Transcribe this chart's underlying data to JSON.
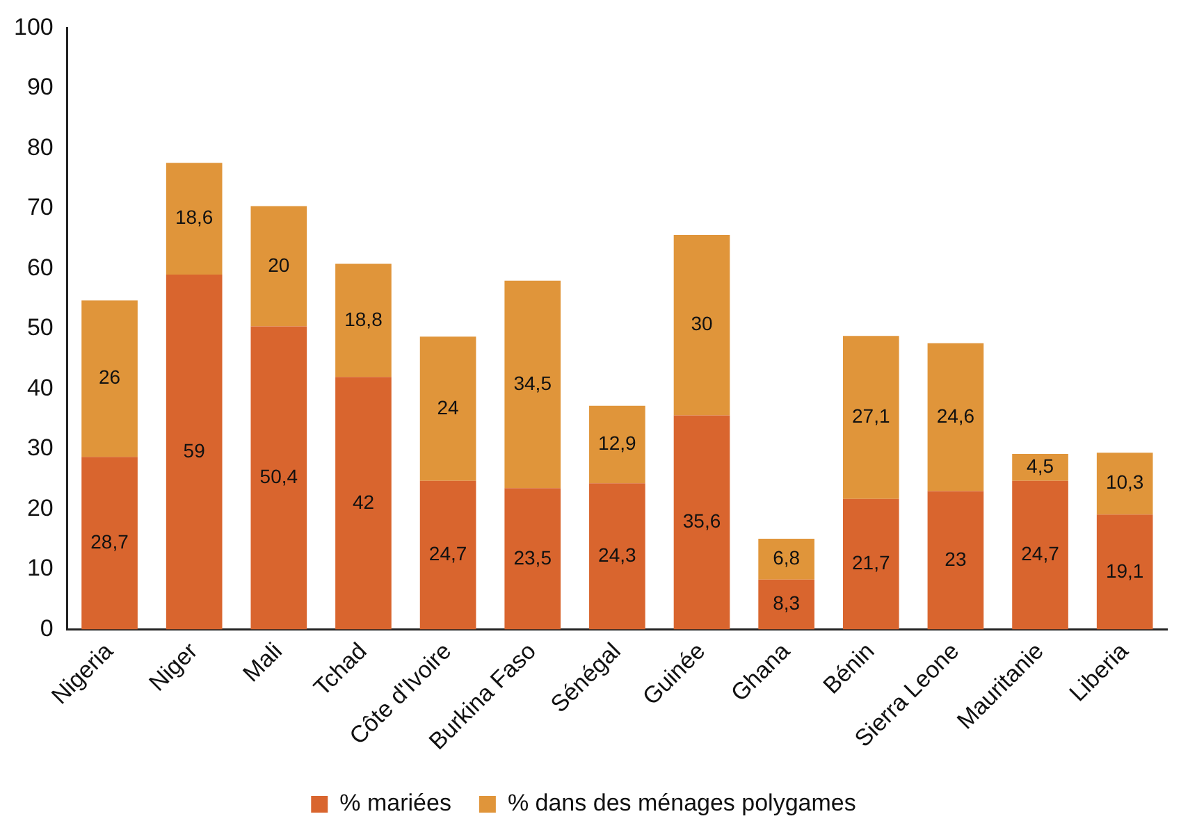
{
  "chart_data": {
    "type": "bar",
    "stacked": true,
    "categories": [
      "Nigeria",
      "Niger",
      "Mali",
      "Tchad",
      "Côte d'Ivoire",
      "Burkina Faso",
      "Sénégal",
      "Guinée",
      "Ghana",
      "Bénin",
      "Sierra Leone",
      "Mauritanie",
      "Liberia"
    ],
    "series": [
      {
        "name": "% mariées",
        "color": "#d9652e",
        "values": [
          28.7,
          59,
          50.4,
          42,
          24.7,
          23.5,
          24.3,
          35.6,
          8.3,
          21.7,
          23,
          24.7,
          19.1
        ],
        "value_labels": [
          "28,7",
          "59",
          "50,4",
          "42",
          "24,7",
          "23,5",
          "24,3",
          "35,6",
          "8,3",
          "21,7",
          "23",
          "24,7",
          "19,1"
        ]
      },
      {
        "name": "% dans des ménages polygames",
        "color": "#e0953a",
        "values": [
          26,
          18.6,
          20,
          18.8,
          24,
          34.5,
          12.9,
          30,
          6.8,
          27.1,
          24.6,
          4.5,
          10.3
        ],
        "value_labels": [
          "26",
          "18,6",
          "20",
          "18,8",
          "24",
          "34,5",
          "12,9",
          "30",
          "6,8",
          "27,1",
          "24,6",
          "4,5",
          "10,3"
        ]
      }
    ],
    "ylim": [
      0,
      100
    ],
    "yticks": [
      0,
      10,
      20,
      30,
      40,
      50,
      60,
      70,
      80,
      90,
      100
    ],
    "grid": false,
    "legend": "bottom"
  }
}
